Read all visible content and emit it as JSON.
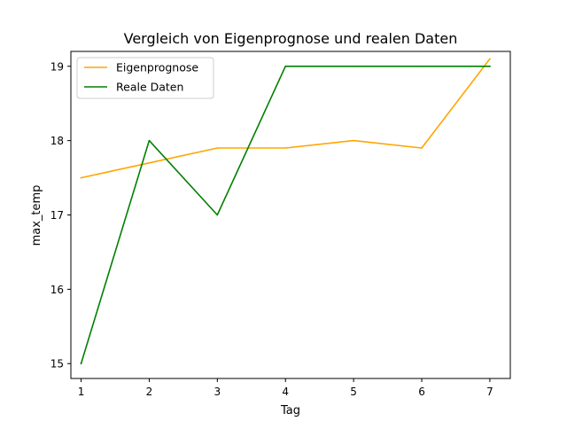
{
  "chart_data": {
    "type": "line",
    "title": "Vergleich von Eigenprognose und realen Daten",
    "xlabel": "Tag",
    "ylabel": "max_temp",
    "x": [
      1,
      2,
      3,
      4,
      5,
      6,
      7
    ],
    "xlim": [
      0.85,
      7.3
    ],
    "ylim": [
      14.8,
      19.2
    ],
    "xticks": [
      "1",
      "2",
      "3",
      "4",
      "5",
      "6",
      "7"
    ],
    "yticks": [
      "15",
      "16",
      "17",
      "18",
      "19"
    ],
    "grid": false,
    "legend_position": "top-left",
    "series": [
      {
        "name": "Eigenprognose",
        "color": "#ffa500",
        "values": [
          17.5,
          17.7,
          17.9,
          17.9,
          18.0,
          17.9,
          19.1
        ]
      },
      {
        "name": "Reale Daten",
        "color": "#008000",
        "values": [
          15.0,
          18.0,
          17.0,
          19.0,
          19.0,
          19.0,
          19.0
        ]
      }
    ]
  }
}
